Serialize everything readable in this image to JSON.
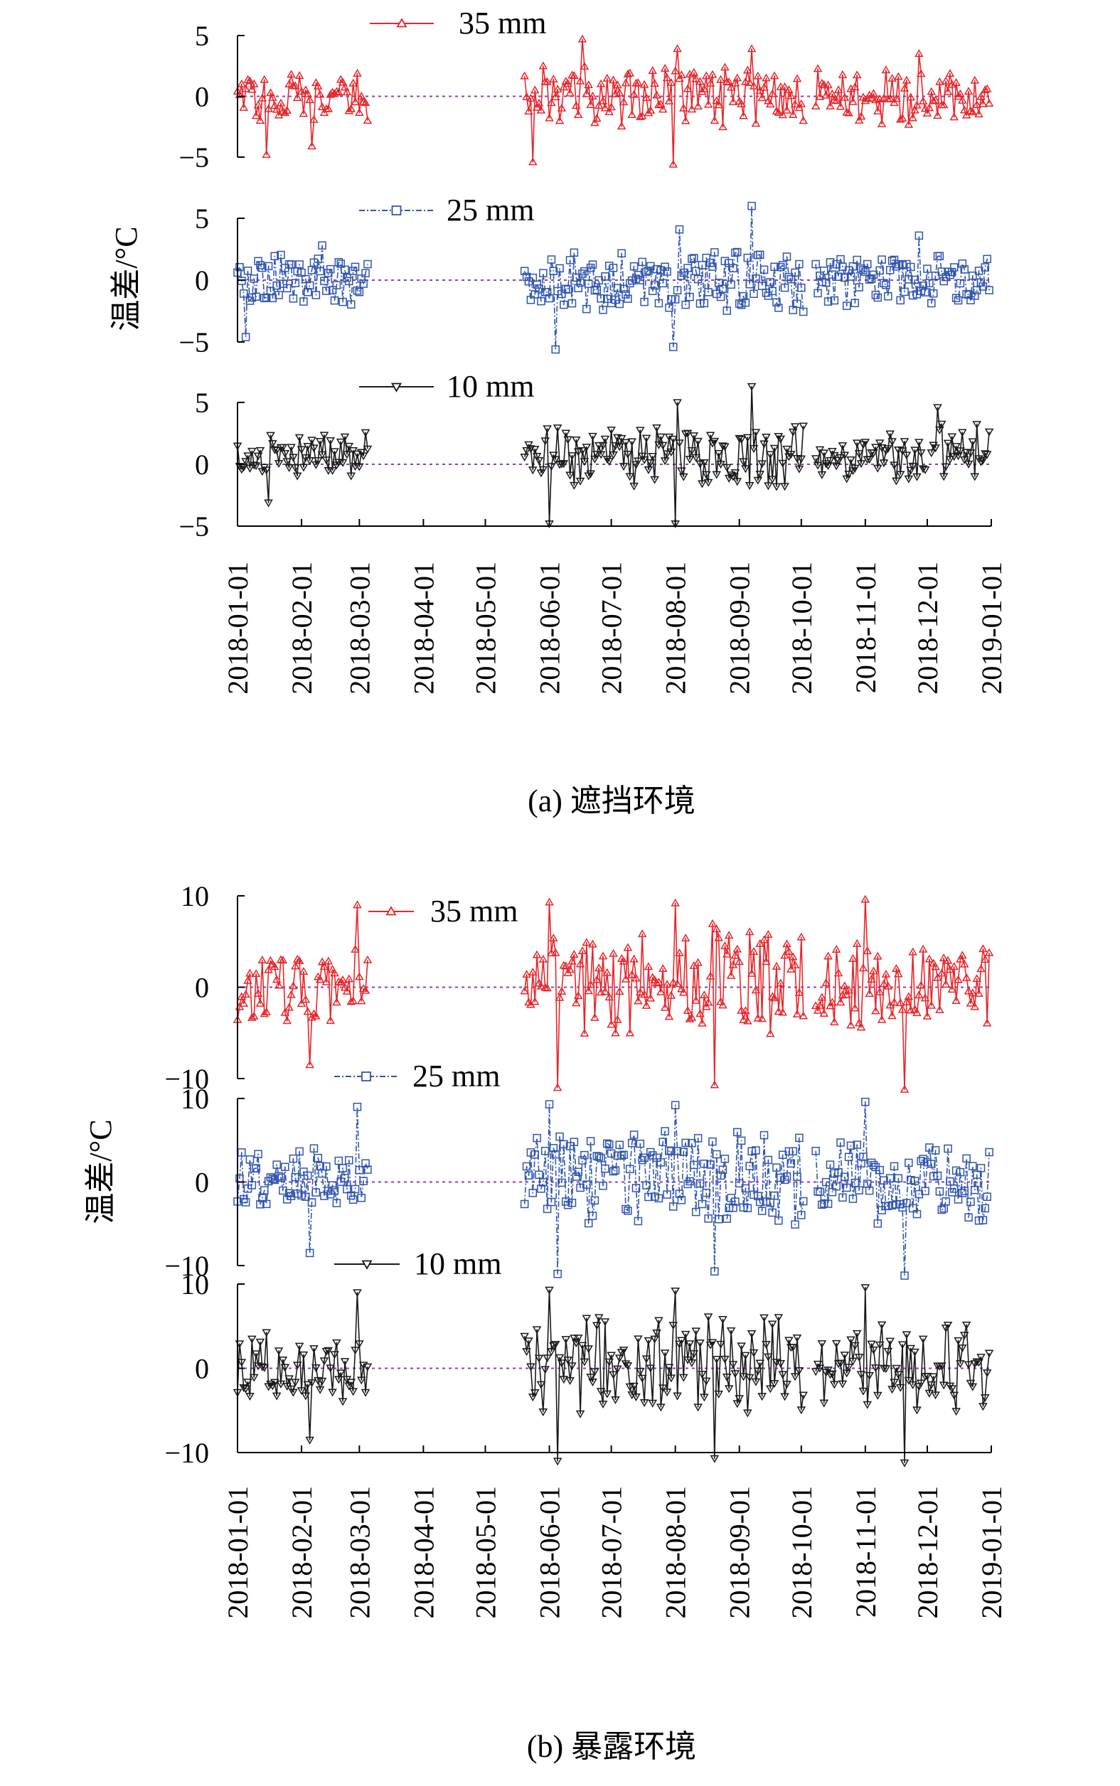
{
  "chart_data": [
    {
      "type": "line",
      "caption": "(a) 遮挡环境",
      "ylabel": "温差/°C",
      "x_ticks": [
        "2018-01-01",
        "2018-02-01",
        "2018-03-01",
        "2018-04-01",
        "2018-05-01",
        "2018-06-01",
        "2018-07-01",
        "2018-08-01",
        "2018-09-01",
        "2018-10-01",
        "2018-11-01",
        "2018-12-01",
        "2019-01-01"
      ],
      "xlim": [
        "2018-01-01",
        "2019-01-01"
      ],
      "reference_line": 0,
      "panels": [
        {
          "series": [
            {
              "name": "35 mm",
              "color": "#e8262b",
              "marker": "triangle-up",
              "line": "solid"
            }
          ],
          "ylim": [
            -5,
            5
          ],
          "yticks": [
            5,
            0,
            -5
          ],
          "ytick_labels": [
            "5",
            "0",
            "−5"
          ],
          "segments": [
            {
              "start": "2018-01-01",
              "end": "2018-03-05",
              "center": 0.0,
              "amplitude": 2.2,
              "outliers": [
                {
                  "date": "2018-01-15",
                  "y": -4.8
                },
                {
                  "date": "2018-02-06",
                  "y": -4.1
                }
              ]
            },
            {
              "start": "2018-05-20",
              "end": "2018-10-02",
              "center": 0.0,
              "amplitude": 2.8,
              "outliers": [
                {
                  "date": "2018-05-24",
                  "y": -5.4
                },
                {
                  "date": "2018-06-17",
                  "y": 4.7
                },
                {
                  "date": "2018-07-31",
                  "y": -5.6
                },
                {
                  "date": "2018-08-02",
                  "y": 3.9
                },
                {
                  "date": "2018-09-07",
                  "y": 3.9
                }
              ]
            },
            {
              "start": "2018-10-08",
              "end": "2018-12-31",
              "center": 0.0,
              "amplitude": 2.5,
              "outliers": [
                {
                  "date": "2018-11-27",
                  "y": 3.5
                }
              ]
            }
          ]
        },
        {
          "series": [
            {
              "name": "25 mm",
              "color": "#2f54b0",
              "marker": "square",
              "line": "dashdot"
            }
          ],
          "ylim": [
            -5,
            5
          ],
          "yticks": [
            5,
            0,
            -5
          ],
          "ytick_labels": [
            "5",
            "0",
            "−5"
          ],
          "segments": [
            {
              "start": "2018-01-01",
              "end": "2018-03-05",
              "center": 0.0,
              "amplitude": 2.3,
              "outliers": [
                {
                  "date": "2018-01-05",
                  "y": -4.6
                },
                {
                  "date": "2018-02-11",
                  "y": 2.8
                }
              ]
            },
            {
              "start": "2018-05-20",
              "end": "2018-10-02",
              "center": 0.0,
              "amplitude": 2.8,
              "outliers": [
                {
                  "date": "2018-06-04",
                  "y": -5.6
                },
                {
                  "date": "2018-07-31",
                  "y": -5.4
                },
                {
                  "date": "2018-09-07",
                  "y": 6.0
                },
                {
                  "date": "2018-08-03",
                  "y": 4.1
                }
              ]
            },
            {
              "start": "2018-10-08",
              "end": "2018-12-31",
              "center": 0.0,
              "amplitude": 2.5,
              "outliers": [
                {
                  "date": "2018-11-27",
                  "y": 3.6
                }
              ]
            }
          ]
        },
        {
          "series": [
            {
              "name": "10 mm",
              "color": "#1a1a1a",
              "marker": "triangle-down",
              "line": "solid"
            }
          ],
          "ylim": [
            -5,
            5
          ],
          "yticks": [
            5,
            0,
            -5
          ],
          "ytick_labels": [
            "5",
            "0",
            "−5"
          ],
          "segments": [
            {
              "start": "2018-01-01",
              "end": "2018-03-05",
              "center": 0.8,
              "amplitude": 2.0,
              "outliers": [
                {
                  "date": "2018-01-16",
                  "y": -3.1
                }
              ]
            },
            {
              "start": "2018-05-20",
              "end": "2018-10-02",
              "center": 0.7,
              "amplitude": 2.8,
              "outliers": [
                {
                  "date": "2018-06-01",
                  "y": -4.8
                },
                {
                  "date": "2018-08-01",
                  "y": -4.8
                },
                {
                  "date": "2018-08-02",
                  "y": 5.0
                },
                {
                  "date": "2018-09-07",
                  "y": 6.3
                }
              ]
            },
            {
              "start": "2018-10-08",
              "end": "2018-11-30",
              "center": 0.4,
              "amplitude": 2.2,
              "outliers": []
            },
            {
              "start": "2018-12-03",
              "end": "2018-12-31",
              "center": 1.2,
              "amplitude": 2.6,
              "outliers": [
                {
                  "date": "2018-12-06",
                  "y": 4.6
                }
              ]
            }
          ]
        }
      ]
    },
    {
      "type": "line",
      "caption": "(b) 暴露环境",
      "ylabel": "温差/°C",
      "x_ticks": [
        "2018-01-01",
        "2018-02-01",
        "2018-03-01",
        "2018-04-01",
        "2018-05-01",
        "2018-06-01",
        "2018-07-01",
        "2018-08-01",
        "2018-09-01",
        "2018-10-01",
        "2018-11-01",
        "2018-12-01",
        "2019-01-01"
      ],
      "xlim": [
        "2018-01-01",
        "2019-01-01"
      ],
      "reference_line": 0,
      "panels": [
        {
          "series": [
            {
              "name": "35 mm",
              "color": "#e8262b",
              "marker": "triangle-up",
              "line": "solid"
            }
          ],
          "ylim": [
            -10,
            10
          ],
          "yticks": [
            10,
            0,
            -10
          ],
          "ytick_labels": [
            "10",
            "0",
            "−10"
          ],
          "segments": [
            {
              "start": "2018-01-01",
              "end": "2018-03-05",
              "center": 0.0,
              "amplitude": 4.5,
              "outliers": [
                {
                  "date": "2018-02-28",
                  "y": 9.0
                },
                {
                  "date": "2018-02-05",
                  "y": -8.5
                }
              ]
            },
            {
              "start": "2018-05-20",
              "end": "2018-10-02",
              "center": 0.5,
              "amplitude": 6.5,
              "outliers": [
                {
                  "date": "2018-06-01",
                  "y": 9.3
                },
                {
                  "date": "2018-08-01",
                  "y": 9.2
                },
                {
                  "date": "2018-06-05",
                  "y": -11.0
                },
                {
                  "date": "2018-08-20",
                  "y": -10.7
                }
              ]
            },
            {
              "start": "2018-10-08",
              "end": "2018-12-31",
              "center": 0.0,
              "amplitude": 5.5,
              "outliers": [
                {
                  "date": "2018-11-01",
                  "y": 9.6
                },
                {
                  "date": "2018-11-20",
                  "y": -11.2
                }
              ]
            }
          ]
        },
        {
          "series": [
            {
              "name": "25 mm",
              "color": "#2f54b0",
              "marker": "square",
              "line": "dashdot"
            }
          ],
          "ylim": [
            -10,
            10
          ],
          "yticks": [
            10,
            0,
            -10
          ],
          "ytick_labels": [
            "10",
            "0",
            "−10"
          ],
          "segments": [
            {
              "start": "2018-01-01",
              "end": "2018-03-05",
              "center": 0.0,
              "amplitude": 4.5,
              "outliers": [
                {
                  "date": "2018-02-28",
                  "y": 9.0
                },
                {
                  "date": "2018-02-05",
                  "y": -8.5
                }
              ]
            },
            {
              "start": "2018-05-20",
              "end": "2018-10-02",
              "center": 0.5,
              "amplitude": 6.5,
              "outliers": [
                {
                  "date": "2018-06-01",
                  "y": 9.3
                },
                {
                  "date": "2018-08-01",
                  "y": 9.2
                },
                {
                  "date": "2018-06-05",
                  "y": -11.0
                },
                {
                  "date": "2018-08-20",
                  "y": -10.7
                }
              ]
            },
            {
              "start": "2018-10-08",
              "end": "2018-12-31",
              "center": 0.0,
              "amplitude": 5.5,
              "outliers": [
                {
                  "date": "2018-11-01",
                  "y": 9.6
                },
                {
                  "date": "2018-11-20",
                  "y": -11.2
                }
              ]
            }
          ]
        },
        {
          "series": [
            {
              "name": "10 mm",
              "color": "#1a1a1a",
              "marker": "triangle-down",
              "line": "solid"
            }
          ],
          "ylim": [
            -10,
            10
          ],
          "yticks": [
            10,
            0,
            -10
          ],
          "ytick_labels": [
            "10",
            "0",
            "−10"
          ],
          "segments": [
            {
              "start": "2018-01-01",
              "end": "2018-03-05",
              "center": 0.0,
              "amplitude": 4.5,
              "outliers": [
                {
                  "date": "2018-02-28",
                  "y": 9.0
                },
                {
                  "date": "2018-02-05",
                  "y": -8.5
                }
              ]
            },
            {
              "start": "2018-05-20",
              "end": "2018-10-02",
              "center": 0.5,
              "amplitude": 6.5,
              "outliers": [
                {
                  "date": "2018-06-01",
                  "y": 9.3
                },
                {
                  "date": "2018-08-01",
                  "y": 9.2
                },
                {
                  "date": "2018-06-05",
                  "y": -11.0
                },
                {
                  "date": "2018-08-20",
                  "y": -10.7
                }
              ]
            },
            {
              "start": "2018-10-08",
              "end": "2018-12-31",
              "center": 0.0,
              "amplitude": 5.5,
              "outliers": [
                {
                  "date": "2018-11-01",
                  "y": 9.6
                },
                {
                  "date": "2018-11-20",
                  "y": -11.2
                }
              ]
            }
          ]
        }
      ]
    }
  ]
}
